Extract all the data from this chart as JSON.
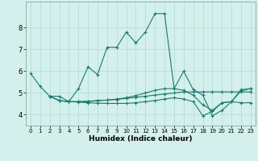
{
  "xlabel": "Humidex (Indice chaleur)",
  "ylim": [
    3.5,
    9.2
  ],
  "yticks": [
    4,
    5,
    6,
    7,
    8
  ],
  "xlim": [
    -0.5,
    23.5
  ],
  "background_color": "#d4f0ec",
  "grid_color": "#b8ddd8",
  "line_color": "#1a7a6e",
  "lines": [
    {
      "x": [
        0,
        1,
        2,
        3,
        4,
        5,
        6,
        7,
        8,
        9,
        10,
        11,
        12,
        13,
        14,
        15,
        16,
        17,
        18,
        19,
        20,
        21,
        22,
        23
      ],
      "y": [
        5.9,
        5.3,
        4.85,
        4.85,
        4.6,
        5.2,
        6.2,
        5.85,
        7.1,
        7.1,
        7.8,
        7.3,
        7.8,
        8.65,
        8.65,
        5.2,
        6.0,
        5.15,
        4.9,
        3.95,
        4.2,
        4.6,
        5.1,
        5.2
      ]
    },
    {
      "x": [
        2,
        3,
        4,
        5,
        6,
        7,
        8,
        9,
        10,
        11,
        12,
        13,
        14,
        15,
        16,
        17,
        18,
        19,
        20,
        21,
        22,
        23
      ],
      "y": [
        4.85,
        4.65,
        4.6,
        4.6,
        4.62,
        4.65,
        4.67,
        4.7,
        4.75,
        4.8,
        4.85,
        4.9,
        4.95,
        5.0,
        5.05,
        5.05,
        5.05,
        5.05,
        5.05,
        5.05,
        5.05,
        5.05
      ]
    },
    {
      "x": [
        2,
        3,
        4,
        5,
        6,
        7,
        8,
        9,
        10,
        11,
        12,
        13,
        14,
        15,
        16,
        17,
        18,
        19,
        20,
        21,
        22,
        23
      ],
      "y": [
        4.85,
        4.65,
        4.6,
        4.6,
        4.6,
        4.65,
        4.67,
        4.72,
        4.78,
        4.88,
        5.0,
        5.12,
        5.2,
        5.2,
        5.12,
        4.9,
        4.45,
        4.2,
        4.55,
        4.6,
        5.15,
        5.2
      ]
    },
    {
      "x": [
        2,
        3,
        4,
        5,
        6,
        7,
        8,
        9,
        10,
        11,
        12,
        13,
        14,
        15,
        16,
        17,
        18,
        19,
        20,
        21,
        22,
        23
      ],
      "y": [
        4.85,
        4.65,
        4.6,
        4.58,
        4.55,
        4.53,
        4.52,
        4.52,
        4.52,
        4.55,
        4.6,
        4.65,
        4.72,
        4.78,
        4.72,
        4.6,
        3.95,
        4.15,
        4.55,
        4.6,
        4.55,
        4.55
      ]
    }
  ]
}
